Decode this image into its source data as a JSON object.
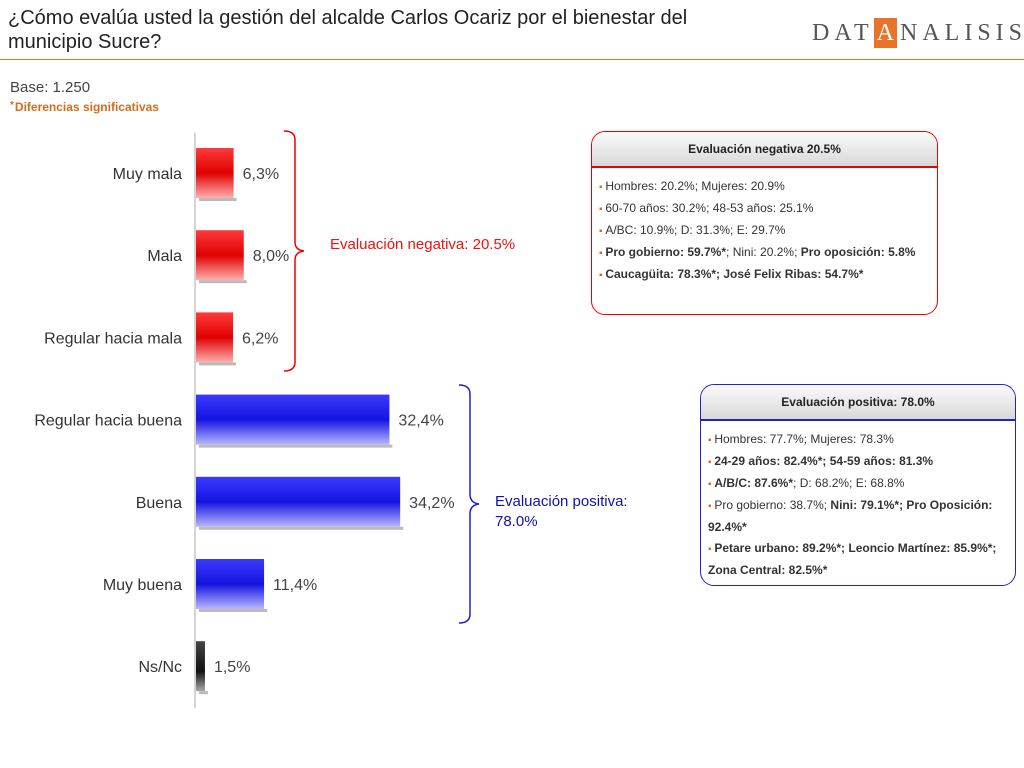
{
  "header": {
    "title": "¿Cómo evalúa usted la gestión del alcalde Carlos Ocariz por el bienestar del municipio Sucre?",
    "logo_pre": "DAT",
    "logo_a": "A",
    "logo_post": "NALISIS"
  },
  "base": "Base: 1.250",
  "note_asterisk": "*",
  "note": "Diferencias significativas",
  "chart_data": {
    "type": "bar",
    "orientation": "horizontal",
    "categories": [
      "Muy mala",
      "Mala",
      "Regular hacia mala",
      "Regular hacia buena",
      "Buena",
      "Muy buena",
      "Ns/Nc"
    ],
    "values": [
      6.3,
      8.0,
      6.2,
      32.4,
      34.2,
      11.4,
      1.5
    ],
    "value_labels": [
      "6,3%",
      "8,0%",
      "6,2%",
      "32,4%",
      "34,2%",
      "11,4%",
      "1,5%"
    ],
    "colors": [
      "#e00000",
      "#e00000",
      "#e00000",
      "#1a1ae6",
      "#1a1ae6",
      "#1a1ae6",
      "#222222"
    ],
    "xlim": [
      0,
      100
    ]
  },
  "groups": {
    "negative_label": "Evaluación negativa: 20.5%",
    "positive_label_line1": "Evaluación positiva:",
    "positive_label_line2": "78.0%"
  },
  "box_negative": {
    "title": "Evaluación negativa 20.5%",
    "l1": "Hombres: 20.2%; Mujeres: 20.9%",
    "l2": "60-70 años: 30.2%; 48-53 años: 25.1%",
    "l3": "A/BC: 10.9%; D: 31.3%; E: 29.7%",
    "l4a": "Pro gobierno: 59.7%*",
    "l4b": "; Nini: 20.2%; ",
    "l4c": "Pro oposición: 5.8%",
    "l5": "Caucagüita: 78.3%*; José Felix Ribas: 54.7%*"
  },
  "box_positive": {
    "title": "Evaluación positiva: 78.0%",
    "l1": "Hombres: 77.7%; Mujeres: 78.3%",
    "l2": "24-29 años: 82.4%*; 54-59 años: 81.3%",
    "l3a": "A/B/C: 87.6%*",
    "l3b": "; D: 68.2%; E: 68.8%",
    "l4a": "Pro gobierno: 38.7%; ",
    "l4b": "Nini: 79.1%*; Pro Oposición: 92.4%*",
    "l5": "Petare urbano: 89.2%*; Leoncio Martínez: 85.9%*; Zona Central: 82.5%*"
  }
}
